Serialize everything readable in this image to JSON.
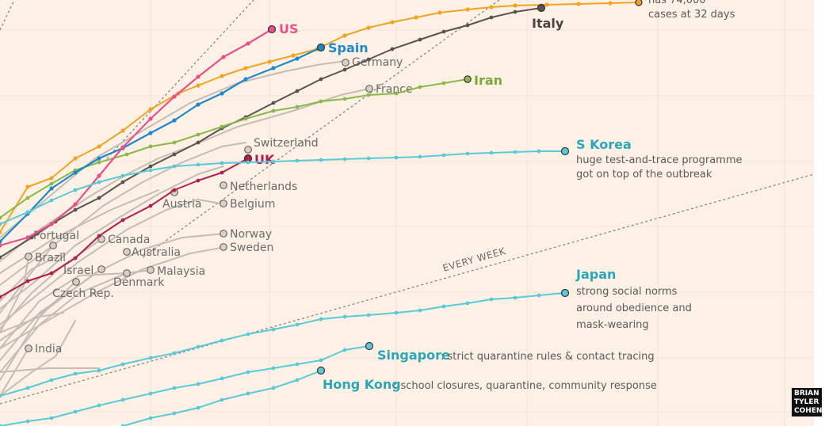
{
  "chart_data": {
    "type": "line",
    "title": "",
    "xlabel": "",
    "ylabel": "",
    "scale": "log",
    "grid": true,
    "colors": {
      "background": "#fdf1e5",
      "grid": "#f3e2d2",
      "us": "#e8508a",
      "spain": "#1f88c9",
      "italy": "#5a5450",
      "china": "#f2a324",
      "iran": "#8ab84a",
      "uk": "#b11e50",
      "teal": "#5cc9d9",
      "grey": "#c4bcb5",
      "marker_grey": "#b8b0aa"
    },
    "annotations": {
      "china_note": "has 74,000",
      "china_note_2": "cases at 32 days",
      "skorea_note_1": "huge test-and-trace programme",
      "skorea_note_2": "got on top of the outbreak",
      "japan_note_1": "strong social norms",
      "japan_note_2": "around obedience and",
      "japan_note_3": "mask-wearing",
      "singapore_note": ": strict quarantine rules & contact tracing",
      "hongkong_note": ": school closures, quarantine, community response",
      "every_week": "EVERY WEEK"
    },
    "series": [
      {
        "name": "US",
        "highlight": true
      },
      {
        "name": "Spain",
        "highlight": true
      },
      {
        "name": "Italy",
        "highlight": true
      },
      {
        "name": "Iran",
        "highlight": true
      },
      {
        "name": "UK",
        "highlight": true
      },
      {
        "name": "S Korea",
        "highlight": true
      },
      {
        "name": "Japan",
        "highlight": true
      },
      {
        "name": "Singapore",
        "highlight": true
      },
      {
        "name": "Hong Kong",
        "highlight": true
      },
      {
        "name": "Germany",
        "highlight": false
      },
      {
        "name": "France",
        "highlight": false
      },
      {
        "name": "Switzerland",
        "highlight": false
      },
      {
        "name": "Netherlands",
        "highlight": false
      },
      {
        "name": "Austria",
        "highlight": false
      },
      {
        "name": "Belgium",
        "highlight": false
      },
      {
        "name": "Norway",
        "highlight": false
      },
      {
        "name": "Sweden",
        "highlight": false
      },
      {
        "name": "Portugal",
        "highlight": false
      },
      {
        "name": "Canada",
        "highlight": false
      },
      {
        "name": "Brazil",
        "highlight": false
      },
      {
        "name": "Australia",
        "highlight": false
      },
      {
        "name": "Israel",
        "highlight": false
      },
      {
        "name": "Malaysia",
        "highlight": false
      },
      {
        "name": "Denmark",
        "highlight": false
      },
      {
        "name": "Czech Rep.",
        "highlight": false
      },
      {
        "name": "India",
        "highlight": false
      }
    ]
  },
  "watermark": {
    "line1": "BRIAN",
    "line2": "TYLER",
    "line3": "COHEN"
  }
}
